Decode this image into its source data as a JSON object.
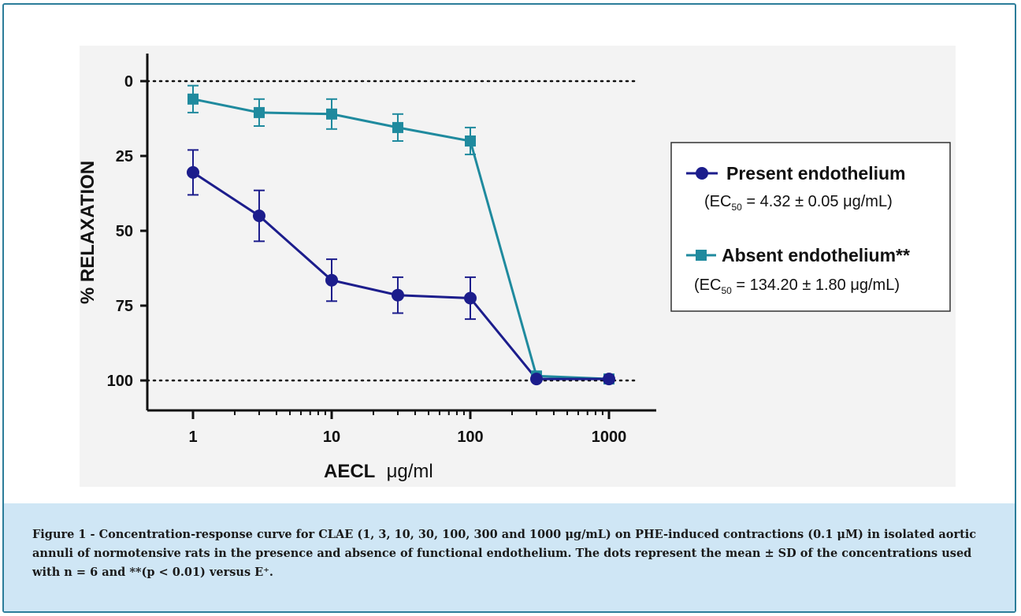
{
  "chart_data": {
    "type": "line",
    "xlabel_main": "AECL",
    "xlabel_unit": "μg/ml",
    "ylabel": "% RELAXATION",
    "x_scale": "log",
    "xlim": [
      0.5,
      2000
    ],
    "ylim": [
      -8,
      110
    ],
    "y_inverted": true,
    "x_ticks": [
      1,
      10,
      100,
      1000
    ],
    "x_tick_labels": [
      "1",
      "10",
      "100",
      "1000"
    ],
    "y_ticks": [
      0,
      25,
      50,
      75,
      100
    ],
    "y_tick_labels": [
      "0",
      "25",
      "50",
      "75",
      "100"
    ],
    "reference_lines": [
      0,
      100
    ],
    "series": [
      {
        "name": "Present endothelium",
        "ec50_prefix": "(EC",
        "ec50_sub": "50",
        "ec50_suffix": " = 4.32 ± 0.05 μg/mL)",
        "color": "#1c1d8c",
        "marker": "circle",
        "x": [
          1,
          3,
          10,
          30,
          100,
          300,
          1000
        ],
        "y": [
          30.5,
          45,
          66.5,
          71.5,
          72.5,
          99.5,
          99.5
        ],
        "err": [
          7.5,
          8.5,
          7,
          6,
          7,
          0,
          0
        ]
      },
      {
        "name": "Absent endothelium**",
        "ec50_prefix": "(EC",
        "ec50_sub": "50",
        "ec50_suffix": " = 134.20 ± 1.80 μg/mL)",
        "color": "#1f8a9e",
        "marker": "square",
        "x": [
          1,
          3,
          10,
          30,
          100,
          300,
          1000
        ],
        "y": [
          6,
          10.5,
          11,
          15.5,
          20,
          98.5,
          99.5
        ],
        "err": [
          4.5,
          4.5,
          5,
          4.5,
          4.5,
          0,
          0
        ]
      }
    ]
  },
  "caption": "Figure 1 - Concentration-response curve for CLAE (1, 3, 10, 30, 100, 300 and 1000 μg/mL) on PHE-induced contractions (0.1 μM) in isolated aortic annuli of normotensive rats in the presence and absence of functional endothelium. The dots represent the mean ± SD of the concentrations used with n = 6 and **(p < 0.01) versus E⁺."
}
